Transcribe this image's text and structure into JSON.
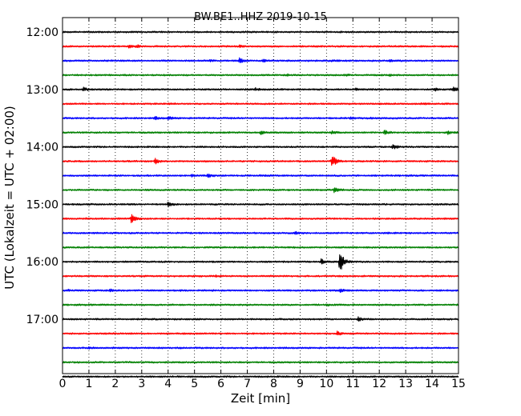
{
  "chart_data": {
    "type": "line",
    "title": "BW.BE1..HHZ 2019-10-15",
    "xlabel": "Zeit  [min]",
    "ylabel": "UTC (Lokalzeit = UTC + 02:00)",
    "xlim": [
      0,
      15
    ],
    "x_ticks": [
      "0",
      "1",
      "2",
      "3",
      "4",
      "5",
      "6",
      "7",
      "8",
      "9",
      "10",
      "11",
      "12",
      "13",
      "14",
      "15"
    ],
    "y_ticks": [
      "12:00",
      "13:00",
      "14:00",
      "15:00",
      "16:00",
      "17:00"
    ],
    "grid": "dotted vertical lines at each minute",
    "trace_interval_min": 15,
    "trace_colors": [
      "#000000",
      "#ff0000",
      "#0000ff",
      "#008000"
    ],
    "traces": [
      {
        "start": "11:45",
        "events": []
      },
      {
        "start": "12:00",
        "events": [
          {
            "t": 2.5,
            "amp": 0.35
          },
          {
            "t": 2.8,
            "amp": 0.25
          },
          {
            "t": 6.7,
            "amp": 0.15
          }
        ]
      },
      {
        "start": "12:15",
        "events": [
          {
            "t": 5.6,
            "amp": 0.15
          },
          {
            "t": 6.7,
            "amp": 0.5
          },
          {
            "t": 7.6,
            "amp": 0.2
          },
          {
            "t": 10.2,
            "amp": 0.15
          },
          {
            "t": 12.4,
            "amp": 0.15
          }
        ]
      },
      {
        "start": "12:30",
        "events": [
          {
            "t": 8.5,
            "amp": 0.12
          },
          {
            "t": 10.7,
            "amp": 0.12
          },
          {
            "t": 12.4,
            "amp": 0.12
          }
        ]
      },
      {
        "start": "12:45",
        "events": [
          {
            "t": 0.8,
            "amp": 0.35
          },
          {
            "t": 7.3,
            "amp": 0.2
          },
          {
            "t": 11.1,
            "amp": 0.2
          },
          {
            "t": 14.1,
            "amp": 0.25
          },
          {
            "t": 14.8,
            "amp": 0.45
          }
        ]
      },
      {
        "start": "13:00",
        "events": [
          {
            "t": 4.0,
            "amp": 0.15
          },
          {
            "t": 13.6,
            "amp": 0.1
          }
        ]
      },
      {
        "start": "13:15",
        "events": [
          {
            "t": 3.5,
            "amp": 0.25
          },
          {
            "t": 4.0,
            "amp": 0.3
          },
          {
            "t": 10.9,
            "amp": 0.2
          },
          {
            "t": 11.7,
            "amp": 0.15
          }
        ]
      },
      {
        "start": "13:30",
        "events": [
          {
            "t": 7.5,
            "amp": 0.35
          },
          {
            "t": 10.2,
            "amp": 0.25
          },
          {
            "t": 12.2,
            "amp": 0.45
          },
          {
            "t": 14.6,
            "amp": 0.3
          }
        ]
      },
      {
        "start": "13:45",
        "events": [
          {
            "t": 12.5,
            "amp": 0.55
          }
        ]
      },
      {
        "start": "14:00",
        "events": [
          {
            "t": 3.5,
            "amp": 0.55
          },
          {
            "t": 10.2,
            "amp": 1.4
          }
        ]
      },
      {
        "start": "14:15",
        "events": [
          {
            "t": 4.9,
            "amp": 0.25
          },
          {
            "t": 5.5,
            "amp": 0.35
          },
          {
            "t": 7.5,
            "amp": 0.12
          }
        ]
      },
      {
        "start": "14:30",
        "events": [
          {
            "t": 10.3,
            "amp": 0.7
          }
        ]
      },
      {
        "start": "14:45",
        "events": [
          {
            "t": 4.0,
            "amp": 0.5
          }
        ]
      },
      {
        "start": "15:00",
        "events": [
          {
            "t": 2.6,
            "amp": 0.9
          },
          {
            "t": 0.9,
            "amp": 0.15
          }
        ]
      },
      {
        "start": "15:15",
        "events": [
          {
            "t": 8.8,
            "amp": 0.2
          },
          {
            "t": 12.3,
            "amp": 0.12
          }
        ]
      },
      {
        "start": "15:30",
        "events": []
      },
      {
        "start": "15:45",
        "events": [
          {
            "t": 9.8,
            "amp": 0.5
          },
          {
            "t": 10.5,
            "amp": 2.4
          }
        ]
      },
      {
        "start": "16:00",
        "events": [
          {
            "t": 5.8,
            "amp": 0.12
          }
        ]
      },
      {
        "start": "16:15",
        "events": [
          {
            "t": 1.8,
            "amp": 0.2
          },
          {
            "t": 10.5,
            "amp": 0.35
          },
          {
            "t": 0.2,
            "amp": 0.15
          }
        ]
      },
      {
        "start": "16:30",
        "events": [
          {
            "t": 10.0,
            "amp": 0.15
          }
        ]
      },
      {
        "start": "16:45",
        "events": [
          {
            "t": 11.2,
            "amp": 0.35
          }
        ]
      },
      {
        "start": "17:00",
        "events": [
          {
            "t": 10.4,
            "amp": 0.45
          }
        ]
      },
      {
        "start": "17:15",
        "events": [
          {
            "t": 1.0,
            "amp": 0.15
          }
        ]
      },
      {
        "start": "17:30",
        "events": []
      },
      {
        "start": "17:45",
        "events": []
      }
    ]
  }
}
